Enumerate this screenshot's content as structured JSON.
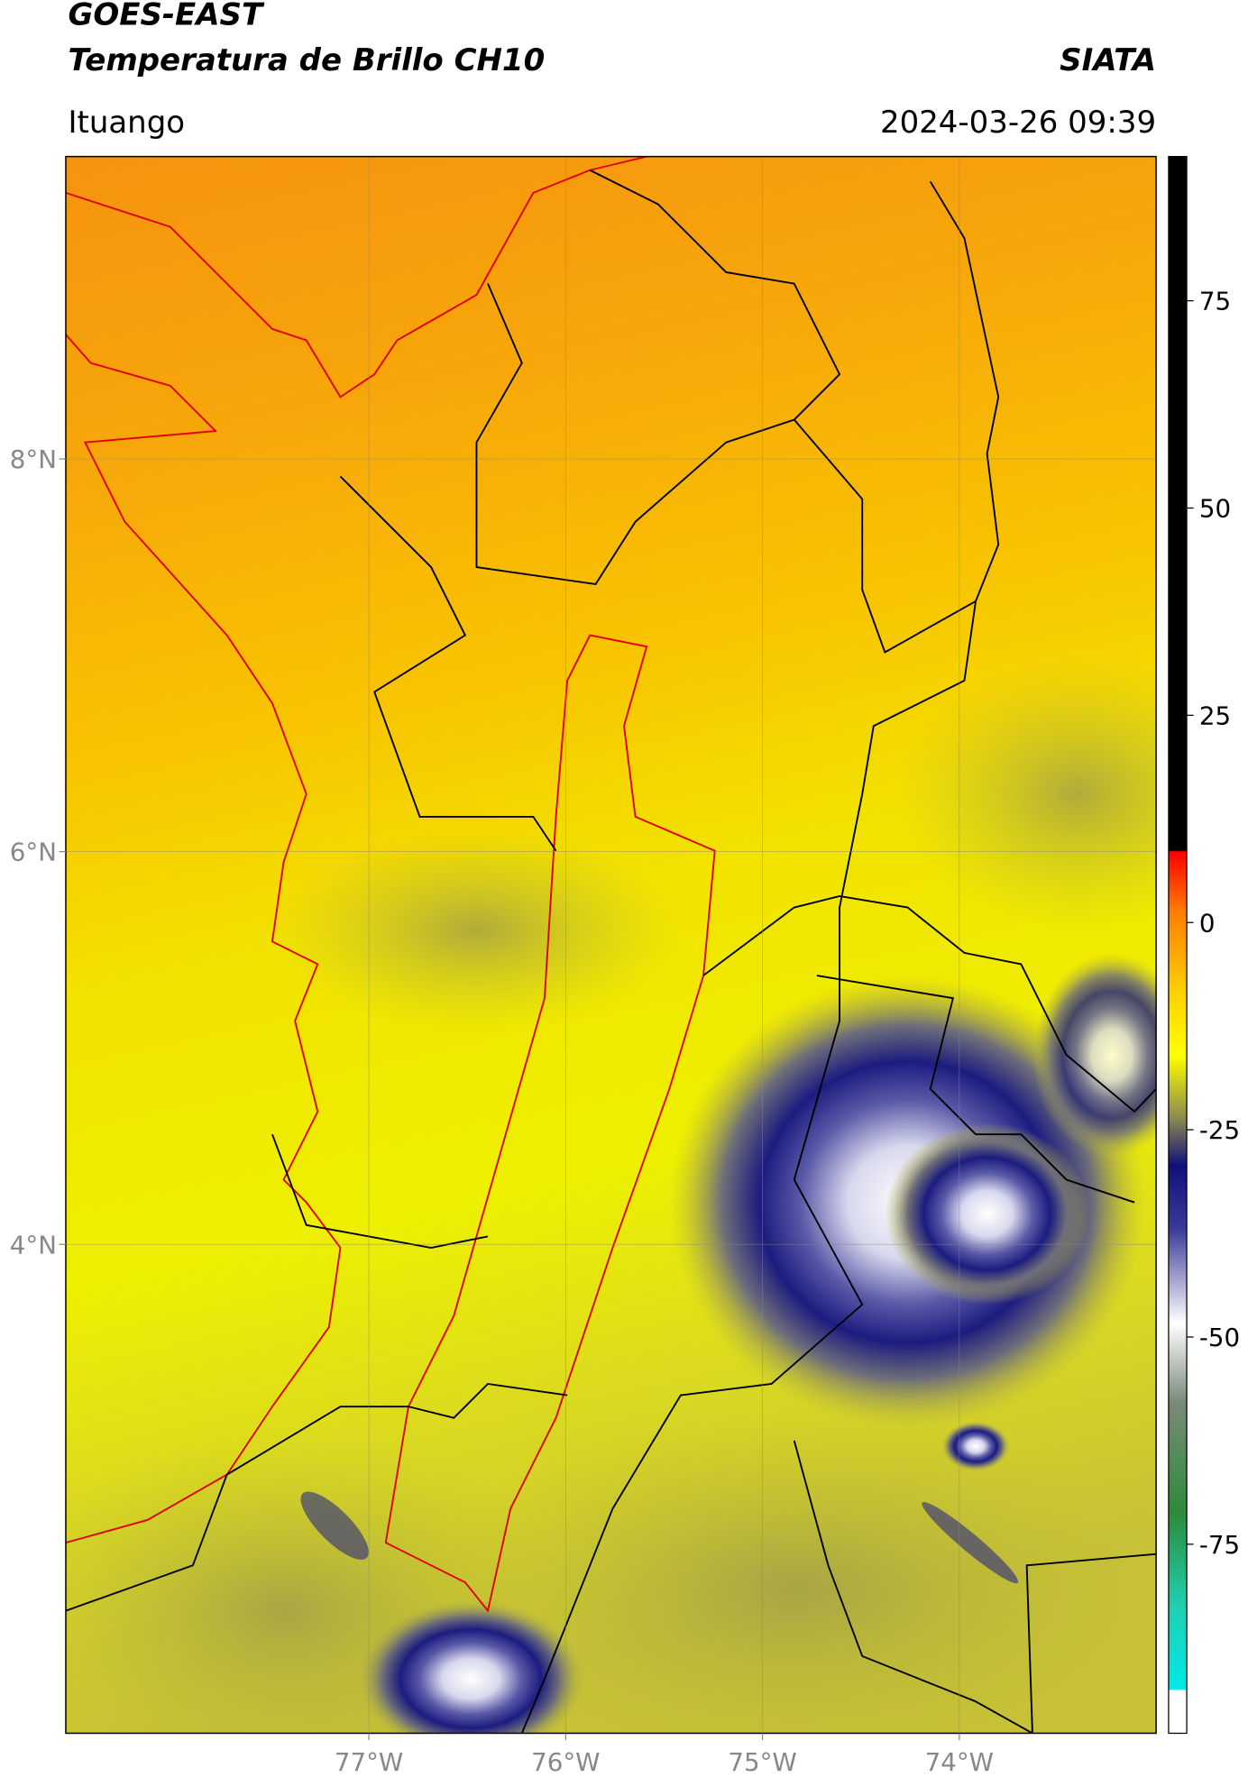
{
  "map": {
    "title": "GOES-EAST",
    "subtitle": "Temperatura de Brillo CH10",
    "source": "SIATA",
    "location": "Ituango",
    "datetime": "2024-03-26 09:39",
    "lonlim": [
      -78.54,
      -73.0
    ],
    "latlim": [
      1.51,
      9.54
    ],
    "lonticks": [
      {
        "value": -77,
        "label": "77°W"
      },
      {
        "value": -76,
        "label": "76°W"
      },
      {
        "value": -75,
        "label": "75°W"
      },
      {
        "value": -74,
        "label": "74°W"
      }
    ],
    "latticks": [
      {
        "value": 8,
        "label": "8°N"
      },
      {
        "value": 6,
        "label": "6°N"
      },
      {
        "value": 4,
        "label": "4°N"
      }
    ],
    "grid": true,
    "colorbar": {
      "lim": [
        -97.8,
        92.4
      ],
      "ticks": [
        75,
        50,
        25,
        0,
        -25,
        -50,
        -75
      ]
    }
  }
}
